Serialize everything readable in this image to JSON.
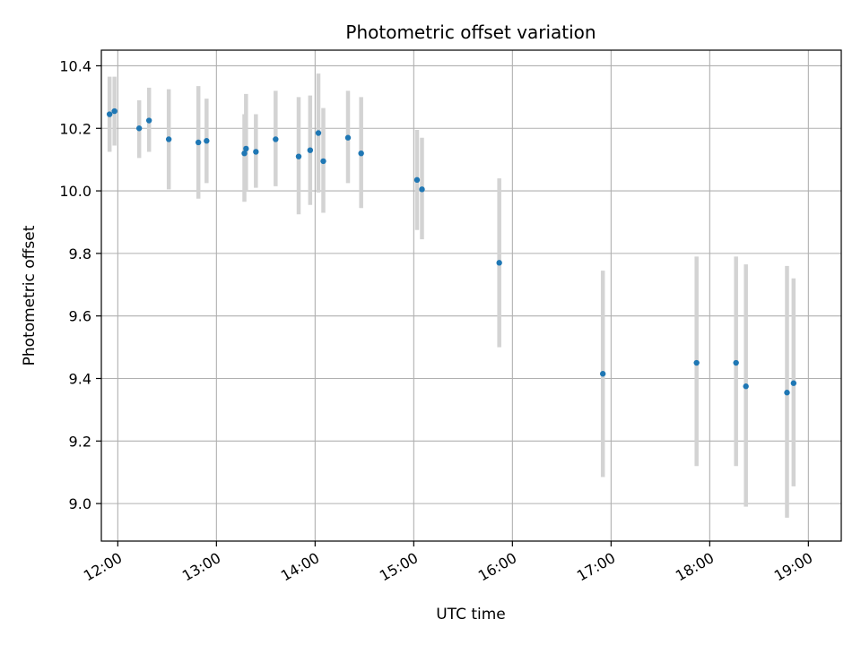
{
  "chart_data": {
    "type": "scatter",
    "title": "Photometric offset variation",
    "xlabel": "UTC time",
    "ylabel": "Photometric offset",
    "x_ticks": [
      "12:00",
      "13:00",
      "14:00",
      "15:00",
      "16:00",
      "17:00",
      "18:00",
      "19:00"
    ],
    "y_ticks": [
      "9.0",
      "9.2",
      "9.4",
      "9.6",
      "9.8",
      "10.0",
      "10.2",
      "10.4"
    ],
    "xlim": [
      "11:50",
      "19:20"
    ],
    "ylim": [
      8.88,
      10.45
    ],
    "grid": true,
    "colors": {
      "points": "#1f77b4",
      "errorbars": "#d3d3d3",
      "grid": "#b0b0b0"
    },
    "points": [
      {
        "x": "11:55",
        "y": 10.245,
        "low": 10.125,
        "high": 10.365
      },
      {
        "x": "11:58",
        "y": 10.255,
        "low": 10.145,
        "high": 10.365
      },
      {
        "x": "12:13",
        "y": 10.2,
        "low": 10.105,
        "high": 10.29
      },
      {
        "x": "12:19",
        "y": 10.225,
        "low": 10.125,
        "high": 10.33
      },
      {
        "x": "12:31",
        "y": 10.165,
        "low": 10.005,
        "high": 10.325
      },
      {
        "x": "12:49",
        "y": 10.155,
        "low": 9.975,
        "high": 10.335
      },
      {
        "x": "12:54",
        "y": 10.16,
        "low": 10.025,
        "high": 10.295
      },
      {
        "x": "13:17",
        "y": 10.12,
        "low": 9.965,
        "high": 10.245
      },
      {
        "x": "13:18",
        "y": 10.135,
        "low": 10.0,
        "high": 10.31
      },
      {
        "x": "13:24",
        "y": 10.125,
        "low": 10.01,
        "high": 10.245
      },
      {
        "x": "13:36",
        "y": 10.165,
        "low": 10.015,
        "high": 10.32
      },
      {
        "x": "13:50",
        "y": 10.11,
        "low": 9.925,
        "high": 10.3
      },
      {
        "x": "13:57",
        "y": 10.13,
        "low": 9.955,
        "high": 10.305
      },
      {
        "x": "14:02",
        "y": 10.185,
        "low": 9.995,
        "high": 10.375
      },
      {
        "x": "14:05",
        "y": 10.095,
        "low": 9.93,
        "high": 10.265
      },
      {
        "x": "14:20",
        "y": 10.17,
        "low": 10.025,
        "high": 10.32
      },
      {
        "x": "14:28",
        "y": 10.12,
        "low": 9.945,
        "high": 10.3
      },
      {
        "x": "15:02",
        "y": 10.035,
        "low": 9.875,
        "high": 10.195
      },
      {
        "x": "15:05",
        "y": 10.005,
        "low": 9.845,
        "high": 10.17
      },
      {
        "x": "15:52",
        "y": 9.77,
        "low": 9.5,
        "high": 10.04
      },
      {
        "x": "16:55",
        "y": 9.415,
        "low": 9.085,
        "high": 9.745
      },
      {
        "x": "17:52",
        "y": 9.45,
        "low": 9.12,
        "high": 9.79
      },
      {
        "x": "18:16",
        "y": 9.45,
        "low": 9.12,
        "high": 9.79
      },
      {
        "x": "18:22",
        "y": 9.375,
        "low": 8.99,
        "high": 9.765
      },
      {
        "x": "18:47",
        "y": 9.355,
        "low": 8.955,
        "high": 9.76
      },
      {
        "x": "18:51",
        "y": 9.385,
        "low": 9.055,
        "high": 9.72
      }
    ]
  }
}
